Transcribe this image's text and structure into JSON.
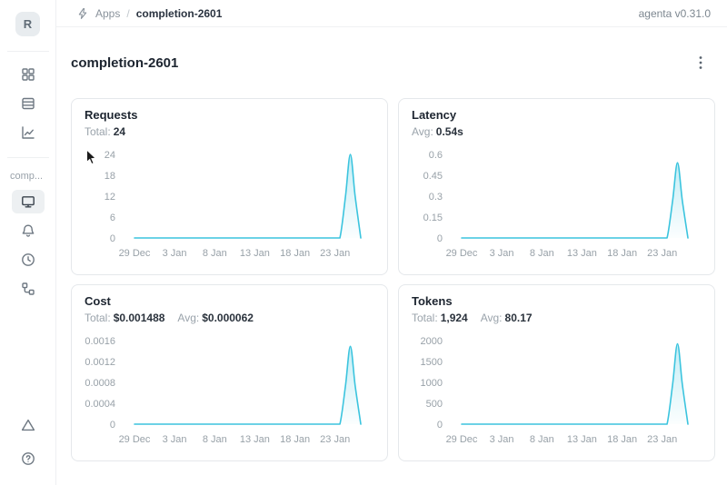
{
  "colors": {
    "accent": "#3bc4de",
    "text_dark": "#1d2530",
    "text_gray": "#98a1a8",
    "card_border": "#e5e8eb"
  },
  "header": {
    "breadcrumb": {
      "icon": "lightning-bolt",
      "section": "Apps",
      "separator": "/",
      "current": "completion-2601"
    },
    "version": "agenta v0.31.0"
  },
  "sidebar": {
    "avatar_letter": "R",
    "workspace_label": "comp...",
    "items": [
      {
        "icon": "grid",
        "selected": false
      },
      {
        "icon": "table-rows",
        "selected": false
      },
      {
        "icon": "trend-chart",
        "selected": false
      },
      {
        "icon": "monitor",
        "selected": true
      },
      {
        "icon": "bell",
        "selected": false
      },
      {
        "icon": "clock",
        "selected": false
      },
      {
        "icon": "tree-hierarchy",
        "selected": false
      }
    ],
    "footer_items": [
      {
        "icon": "warning-triangle"
      },
      {
        "icon": "help-circle"
      }
    ]
  },
  "page": {
    "title": "completion-2601",
    "menu_icon": "kebab-menu"
  },
  "cards": [
    {
      "title": "Requests",
      "stats": [
        {
          "label": "Total:",
          "value": "24"
        }
      ]
    },
    {
      "title": "Latency",
      "stats": [
        {
          "label": "Avg:",
          "value": "0.54s"
        }
      ]
    },
    {
      "title": "Cost",
      "stats": [
        {
          "label": "Total:",
          "value": "$0.001488"
        },
        {
          "label": "Avg:",
          "value": "$0.000062"
        }
      ]
    },
    {
      "title": "Tokens",
      "stats": [
        {
          "label": "Total:",
          "value": "1,924"
        },
        {
          "label": "Avg:",
          "value": "80.17"
        }
      ]
    }
  ],
  "chart_data": [
    {
      "type": "area",
      "name": "Requests",
      "x_ticks": [
        "29 Dec",
        "3 Jan",
        "8 Jan",
        "13 Jan",
        "18 Jan",
        "23 Jan"
      ],
      "x_tick_days": [
        0,
        5,
        10,
        15,
        20,
        25
      ],
      "x_domain_days": [
        0,
        28.2
      ],
      "y_ticks": [
        "0",
        "6",
        "12",
        "18",
        "24"
      ],
      "ylim": [
        0,
        24
      ],
      "peak": {
        "x": "26 Jan",
        "y": 24
      },
      "points_day_value": [
        [
          0,
          0
        ],
        [
          5,
          0
        ],
        [
          10,
          0
        ],
        [
          15,
          0
        ],
        [
          20,
          0
        ],
        [
          25,
          0
        ],
        [
          25.6,
          0
        ],
        [
          26.3,
          12
        ],
        [
          26.9,
          24
        ],
        [
          27.5,
          12
        ],
        [
          28.2,
          0
        ]
      ],
      "grid": false,
      "legend": false
    },
    {
      "type": "area",
      "name": "Latency",
      "x_ticks": [
        "29 Dec",
        "3 Jan",
        "8 Jan",
        "13 Jan",
        "18 Jan",
        "23 Jan"
      ],
      "x_tick_days": [
        0,
        5,
        10,
        15,
        20,
        25
      ],
      "x_domain_days": [
        0,
        28.2
      ],
      "y_ticks": [
        "0",
        "0.15",
        "0.3",
        "0.45",
        "0.6"
      ],
      "ylim": [
        0,
        0.6
      ],
      "peak": {
        "x": "26 Jan",
        "y": 0.54
      },
      "points_day_value": [
        [
          0,
          0
        ],
        [
          5,
          0
        ],
        [
          10,
          0
        ],
        [
          15,
          0
        ],
        [
          20,
          0
        ],
        [
          25,
          0
        ],
        [
          25.6,
          0
        ],
        [
          26.3,
          0.27
        ],
        [
          26.9,
          0.54
        ],
        [
          27.5,
          0.27
        ],
        [
          28.2,
          0
        ]
      ],
      "grid": false,
      "legend": false
    },
    {
      "type": "area",
      "name": "Cost",
      "x_ticks": [
        "29 Dec",
        "3 Jan",
        "8 Jan",
        "13 Jan",
        "18 Jan",
        "23 Jan"
      ],
      "x_tick_days": [
        0,
        5,
        10,
        15,
        20,
        25
      ],
      "x_domain_days": [
        0,
        28.2
      ],
      "y_ticks": [
        "0",
        "0.0004",
        "0.0008",
        "0.0012",
        "0.0016"
      ],
      "ylim": [
        0,
        0.0016
      ],
      "peak": {
        "x": "26 Jan",
        "y": 0.00149
      },
      "points_day_value": [
        [
          0,
          0
        ],
        [
          5,
          0
        ],
        [
          10,
          0
        ],
        [
          15,
          0
        ],
        [
          20,
          0
        ],
        [
          25,
          0
        ],
        [
          25.6,
          0
        ],
        [
          26.3,
          0.00074
        ],
        [
          26.9,
          0.00149
        ],
        [
          27.5,
          0.00074
        ],
        [
          28.2,
          0
        ]
      ],
      "grid": false,
      "legend": false
    },
    {
      "type": "area",
      "name": "Tokens",
      "x_ticks": [
        "29 Dec",
        "3 Jan",
        "8 Jan",
        "13 Jan",
        "18 Jan",
        "23 Jan"
      ],
      "x_tick_days": [
        0,
        5,
        10,
        15,
        20,
        25
      ],
      "x_domain_days": [
        0,
        28.2
      ],
      "y_ticks": [
        "0",
        "500",
        "1000",
        "1500",
        "2000"
      ],
      "ylim": [
        0,
        2000
      ],
      "peak": {
        "x": "26 Jan",
        "y": 1924
      },
      "points_day_value": [
        [
          0,
          0
        ],
        [
          5,
          0
        ],
        [
          10,
          0
        ],
        [
          15,
          0
        ],
        [
          20,
          0
        ],
        [
          25,
          0
        ],
        [
          25.6,
          0
        ],
        [
          26.3,
          960
        ],
        [
          26.9,
          1924
        ],
        [
          27.5,
          960
        ],
        [
          28.2,
          0
        ]
      ],
      "grid": false,
      "legend": false
    }
  ]
}
